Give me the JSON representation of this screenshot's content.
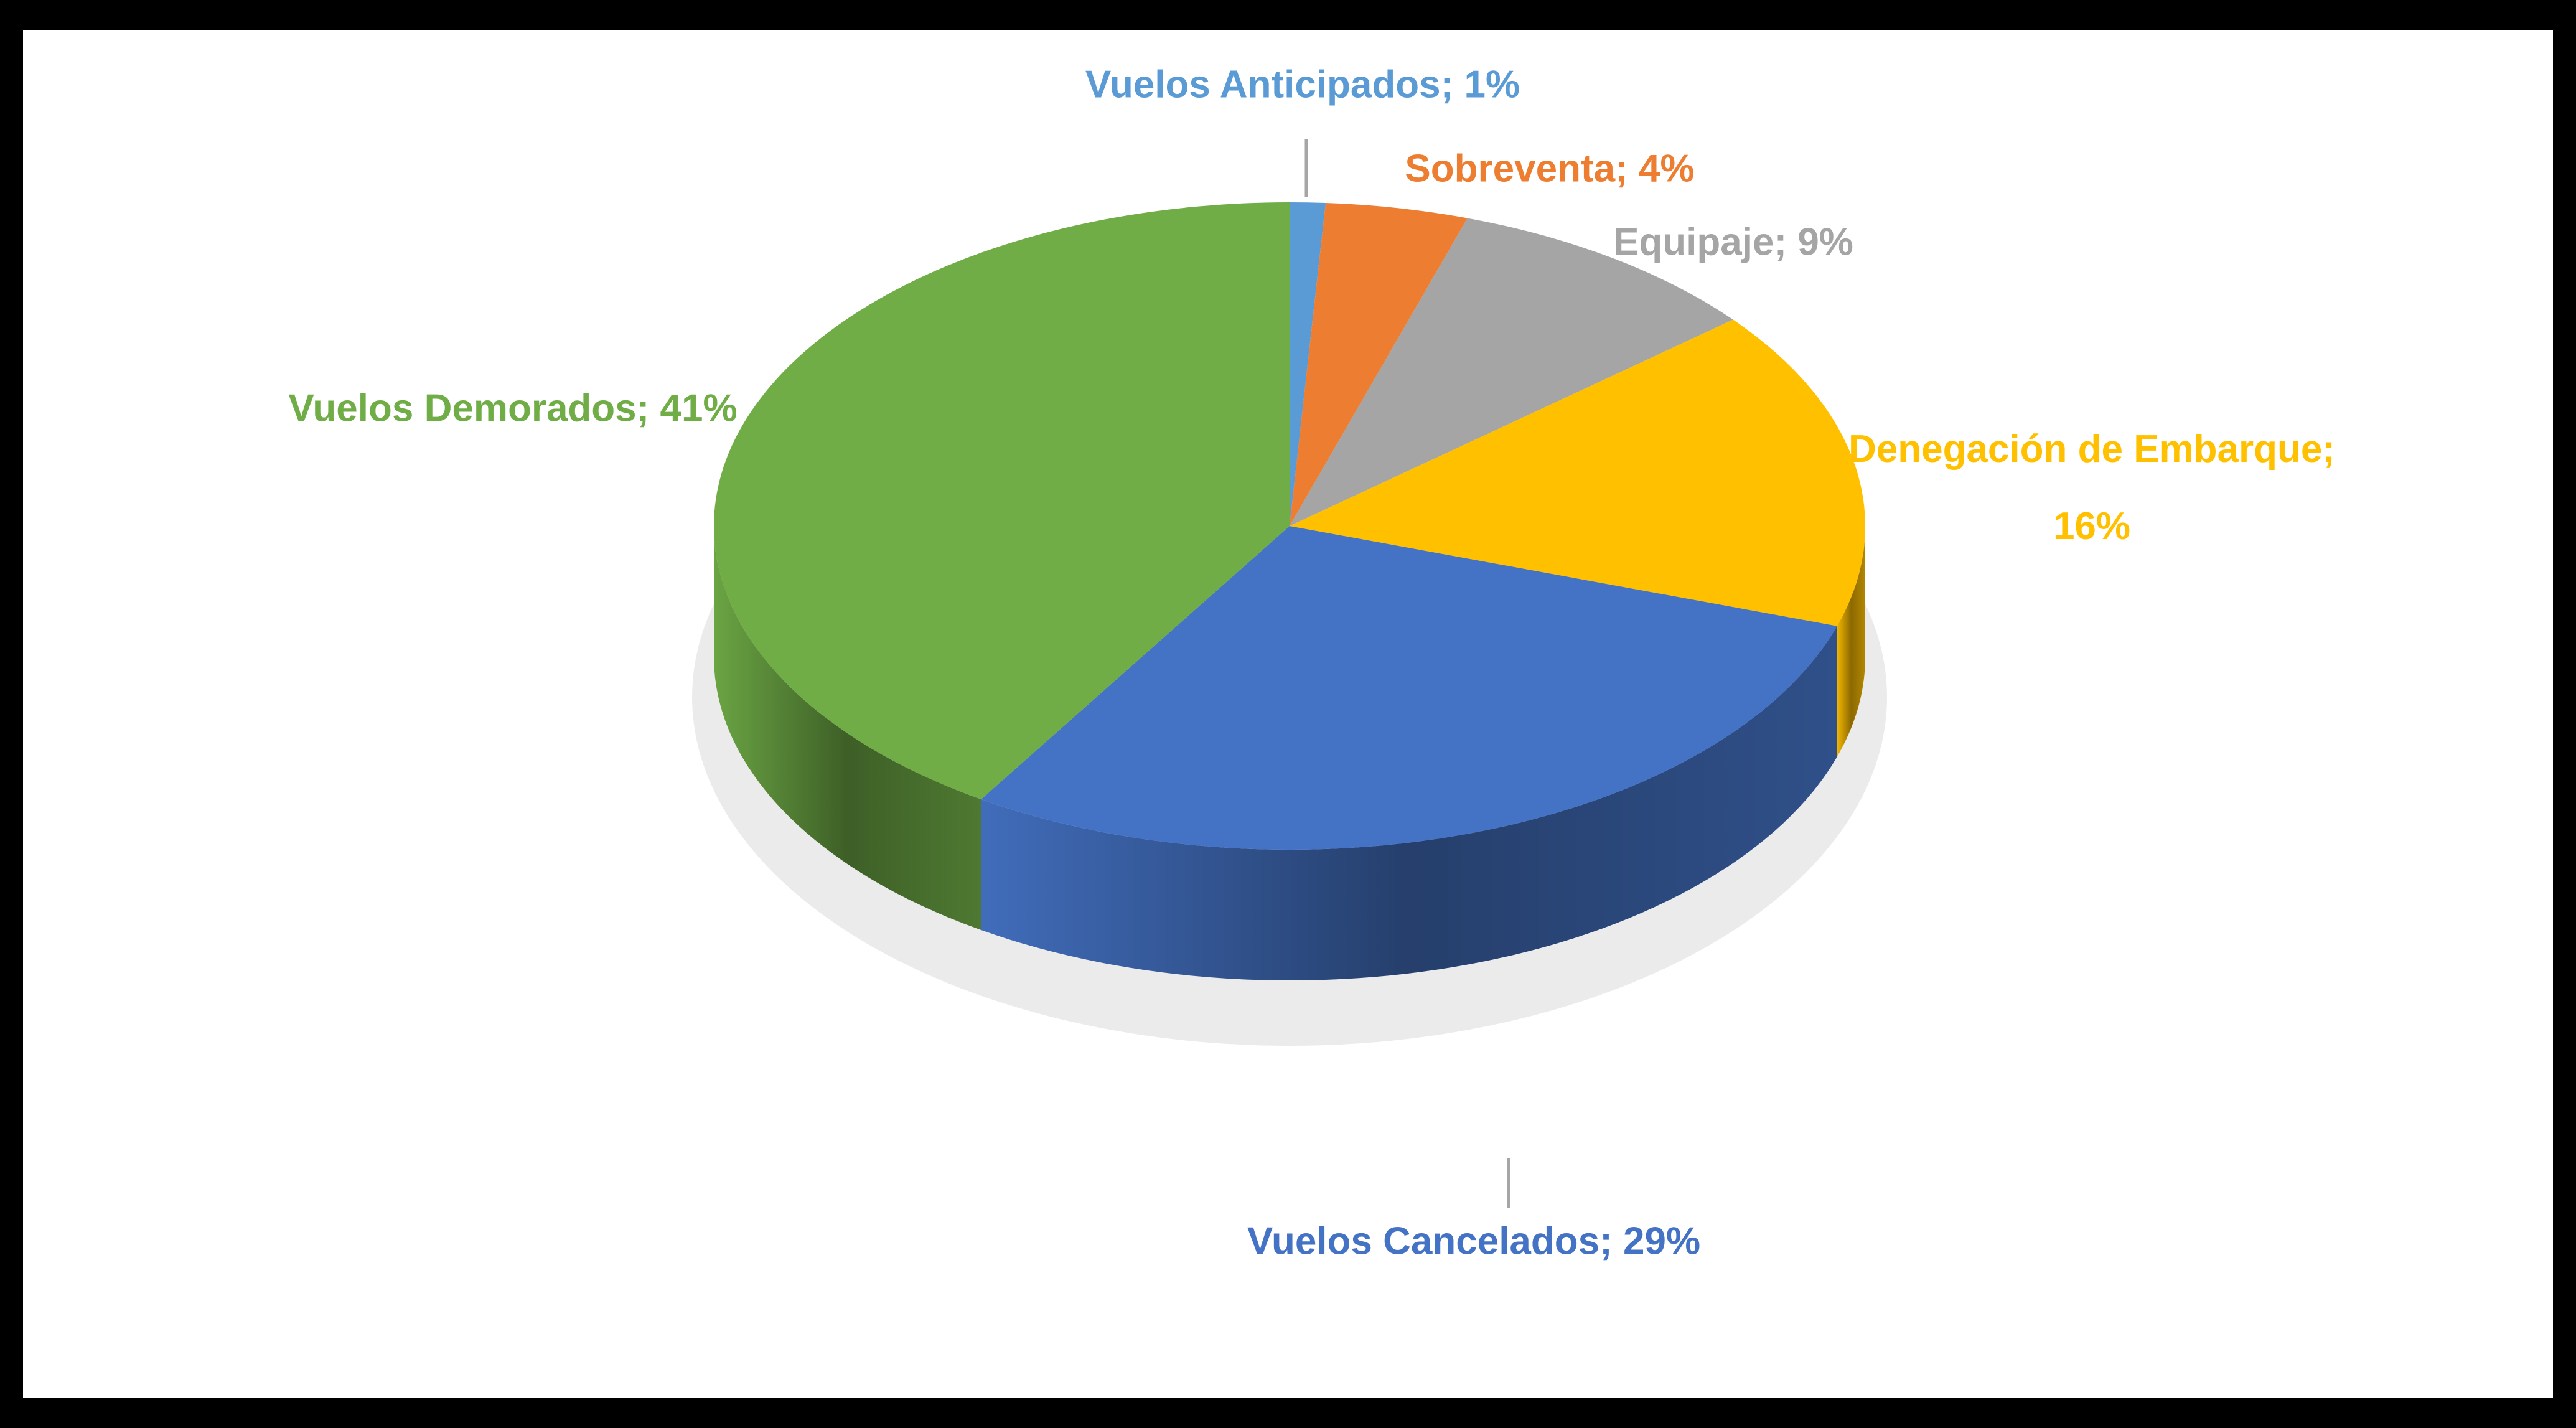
{
  "chart_data": {
    "type": "pie",
    "values": [
      1,
      4,
      9,
      16,
      29,
      41
    ],
    "value_labels": [
      "Vuelos Anticipados; 1%",
      "Sobreventa; 4%",
      "Equipaje; 9%",
      "Denegación de Embarque; 16%",
      "Vuelos Cancelados; 29%",
      "Vuelos Demorados; 41%"
    ],
    "colors": [
      "#5b9bd5",
      "#ed7d31",
      "#a5a5a5",
      "#ffc000",
      "#4472c4",
      "#70ad47"
    ]
  }
}
